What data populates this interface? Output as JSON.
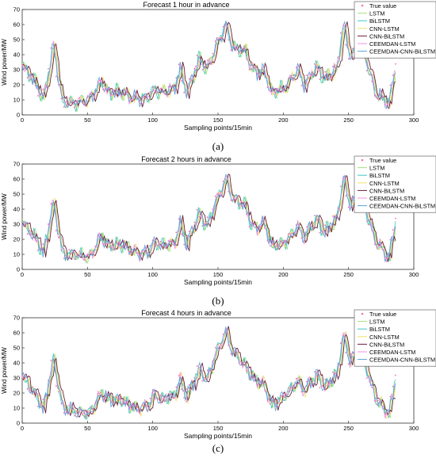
{
  "chart_data": [
    {
      "type": "line",
      "title": "Forecast 1 hour in advance",
      "caption": "(a)",
      "xlabel": "Sampling points/15min",
      "ylabel": "Wind power/MW",
      "xlim": [
        0,
        300
      ],
      "ylim": [
        0,
        70
      ],
      "xticks": [
        0,
        50,
        100,
        150,
        200,
        250,
        300
      ],
      "yticks": [
        0,
        10,
        20,
        30,
        40,
        50,
        60,
        70
      ],
      "grid": false,
      "legend_position": "top-right",
      "x_anchor": [
        0,
        10,
        15,
        23,
        30,
        40,
        50,
        60,
        65,
        75,
        85,
        95,
        100,
        105,
        115,
        120,
        125,
        135,
        140,
        150,
        155,
        160,
        170,
        175,
        185,
        190,
        200,
        210,
        215,
        225,
        230,
        240,
        245,
        250,
        258,
        262,
        270,
        280,
        286
      ],
      "series": [
        {
          "name": "True value",
          "values": [
            32,
            20,
            10,
            45,
            8,
            8,
            10,
            22,
            15,
            15,
            11,
            11,
            17,
            15,
            17,
            30,
            15,
            38,
            30,
            50,
            60,
            45,
            42,
            30,
            28,
            15,
            18,
            30,
            20,
            32,
            24,
            30,
            60,
            40,
            45,
            38,
            14,
            8,
            36
          ]
        },
        {
          "name": "LSTM"
        },
        {
          "name": "BiLSTM"
        },
        {
          "name": "CNN-LSTM"
        },
        {
          "name": "CNN-BiLSTM"
        },
        {
          "name": "CEEMDAN-LSTM"
        },
        {
          "name": "CEEMDAN-CNN-BiLSTM"
        }
      ]
    },
    {
      "type": "line",
      "title": "Forecast 2 hours in advance",
      "caption": "(b)",
      "xlabel": "Sampling points/15min",
      "ylabel": "Wind power/MW",
      "xlim": [
        0,
        300
      ],
      "ylim": [
        0,
        70
      ],
      "xticks": [
        0,
        50,
        100,
        150,
        200,
        250,
        300
      ],
      "yticks": [
        0,
        10,
        20,
        30,
        40,
        50,
        60,
        70
      ],
      "grid": false,
      "legend_position": "top-right",
      "x_anchor": [
        0,
        10,
        15,
        23,
        30,
        40,
        50,
        60,
        65,
        75,
        85,
        95,
        100,
        105,
        115,
        120,
        125,
        135,
        140,
        150,
        155,
        160,
        170,
        175,
        185,
        190,
        200,
        210,
        215,
        225,
        230,
        240,
        245,
        250,
        258,
        262,
        270,
        280,
        286
      ],
      "series": [
        {
          "name": "True value",
          "values": [
            30,
            20,
            10,
            44,
            10,
            10,
            8,
            22,
            15,
            17,
            11,
            11,
            18,
            16,
            17,
            30,
            17,
            38,
            28,
            50,
            60,
            48,
            42,
            28,
            30,
            15,
            18,
            28,
            22,
            34,
            24,
            34,
            60,
            44,
            48,
            40,
            18,
            8,
            36
          ]
        },
        {
          "name": "LSTM"
        },
        {
          "name": "BiLSTM"
        },
        {
          "name": "CNN-LSTM"
        },
        {
          "name": "CNN-BiLSTM"
        },
        {
          "name": "CEEMDAN-LSTM"
        },
        {
          "name": "CEEMDAN-CNN-BiLSTM"
        }
      ]
    },
    {
      "type": "line",
      "title": "Forecast 4 hours in advance",
      "caption": "(c)",
      "xlabel": "Sampling points/15min",
      "ylabel": "Wind power/MW",
      "xlim": [
        0,
        300
      ],
      "ylim": [
        0,
        70
      ],
      "xticks": [
        0,
        50,
        100,
        150,
        200,
        250,
        300
      ],
      "yticks": [
        0,
        10,
        20,
        30,
        40,
        50,
        60,
        70
      ],
      "grid": false,
      "legend_position": "top-right",
      "x_anchor": [
        0,
        10,
        15,
        23,
        30,
        40,
        50,
        60,
        65,
        75,
        85,
        95,
        100,
        105,
        115,
        120,
        125,
        135,
        140,
        150,
        155,
        160,
        170,
        175,
        185,
        190,
        200,
        210,
        215,
        225,
        230,
        240,
        245,
        250,
        258,
        262,
        270,
        280,
        286
      ],
      "series": [
        {
          "name": "True value",
          "values": [
            30,
            18,
            9,
            42,
            10,
            8,
            6,
            20,
            16,
            15,
            10,
            11,
            19,
            16,
            18,
            28,
            18,
            36,
            28,
            52,
            60,
            48,
            38,
            30,
            24,
            12,
            18,
            28,
            22,
            32,
            24,
            32,
            58,
            42,
            48,
            38,
            16,
            6,
            34
          ]
        },
        {
          "name": "LSTM"
        },
        {
          "name": "BiLSTM"
        },
        {
          "name": "CNN-LSTM"
        },
        {
          "name": "CNN-BiLSTM"
        },
        {
          "name": "CEEMDAN-LSTM"
        },
        {
          "name": "CEEMDAN-CNN-BiLSTM"
        }
      ]
    }
  ],
  "colors": {
    "True value": "#ff6fb0",
    "LSTM": "#a8e07a",
    "BiLSTM": "#3cc8c8",
    "CNN-LSTM": "#f2e26a",
    "CNN-BiLSTM": "#6b1f3a",
    "CEEMDAN-LSTM": "#ee90e8",
    "CEEMDAN-CNN-BiLSTM": "#5aa0d8"
  }
}
